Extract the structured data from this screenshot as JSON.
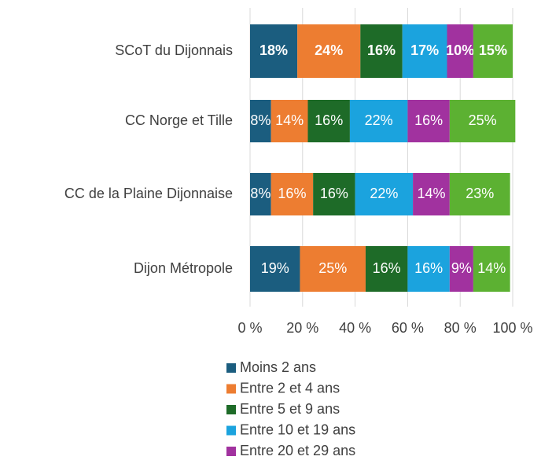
{
  "chart_data": {
    "type": "bar",
    "orientation": "horizontal",
    "stacked": true,
    "categories": [
      "SCoT du Dijonnais",
      "CC Norge et Tille",
      "CC de la Plaine Dijonnaise",
      "Dijon Métropole"
    ],
    "series": [
      {
        "name": "Moins 2 ans",
        "color": "#1b5d7f",
        "values": [
          18,
          8,
          8,
          19
        ],
        "value_labels": [
          "18%",
          "8%",
          "8%",
          "19%"
        ]
      },
      {
        "name": "Entre 2 et 4 ans",
        "color": "#ed7d31",
        "values": [
          24,
          14,
          16,
          25
        ],
        "value_labels": [
          "24%",
          "14%",
          "16%",
          "25%"
        ]
      },
      {
        "name": "Entre 5 et 9 ans",
        "color": "#1e6b28",
        "values": [
          16,
          16,
          16,
          16
        ],
        "value_labels": [
          "16%",
          "16%",
          "16%",
          "16%"
        ]
      },
      {
        "name": "Entre 10 et 19 ans",
        "color": "#1ba3de",
        "values": [
          17,
          22,
          22,
          16
        ],
        "value_labels": [
          "17%",
          "22%",
          "22%",
          "16%"
        ]
      },
      {
        "name": "Entre 20 et 29 ans",
        "color": "#a1329f",
        "values": [
          10,
          16,
          14,
          9
        ],
        "value_labels": [
          "10%",
          "16%",
          "14%",
          "9%"
        ]
      },
      {
        "color": "#5cb132",
        "values": [
          15,
          25,
          23,
          14
        ],
        "value_labels": [
          "15%",
          "25%",
          "23%",
          "14%"
        ]
      }
    ],
    "xlim": [
      0,
      100
    ],
    "xticks": [
      {
        "value": 0,
        "label": "0 %"
      },
      {
        "value": 20,
        "label": "20 %"
      },
      {
        "value": 40,
        "label": "40 %"
      },
      {
        "value": 60,
        "label": "60 %"
      },
      {
        "value": 80,
        "label": "80 %"
      },
      {
        "value": 100,
        "label": "100 %"
      }
    ],
    "grid": true
  }
}
